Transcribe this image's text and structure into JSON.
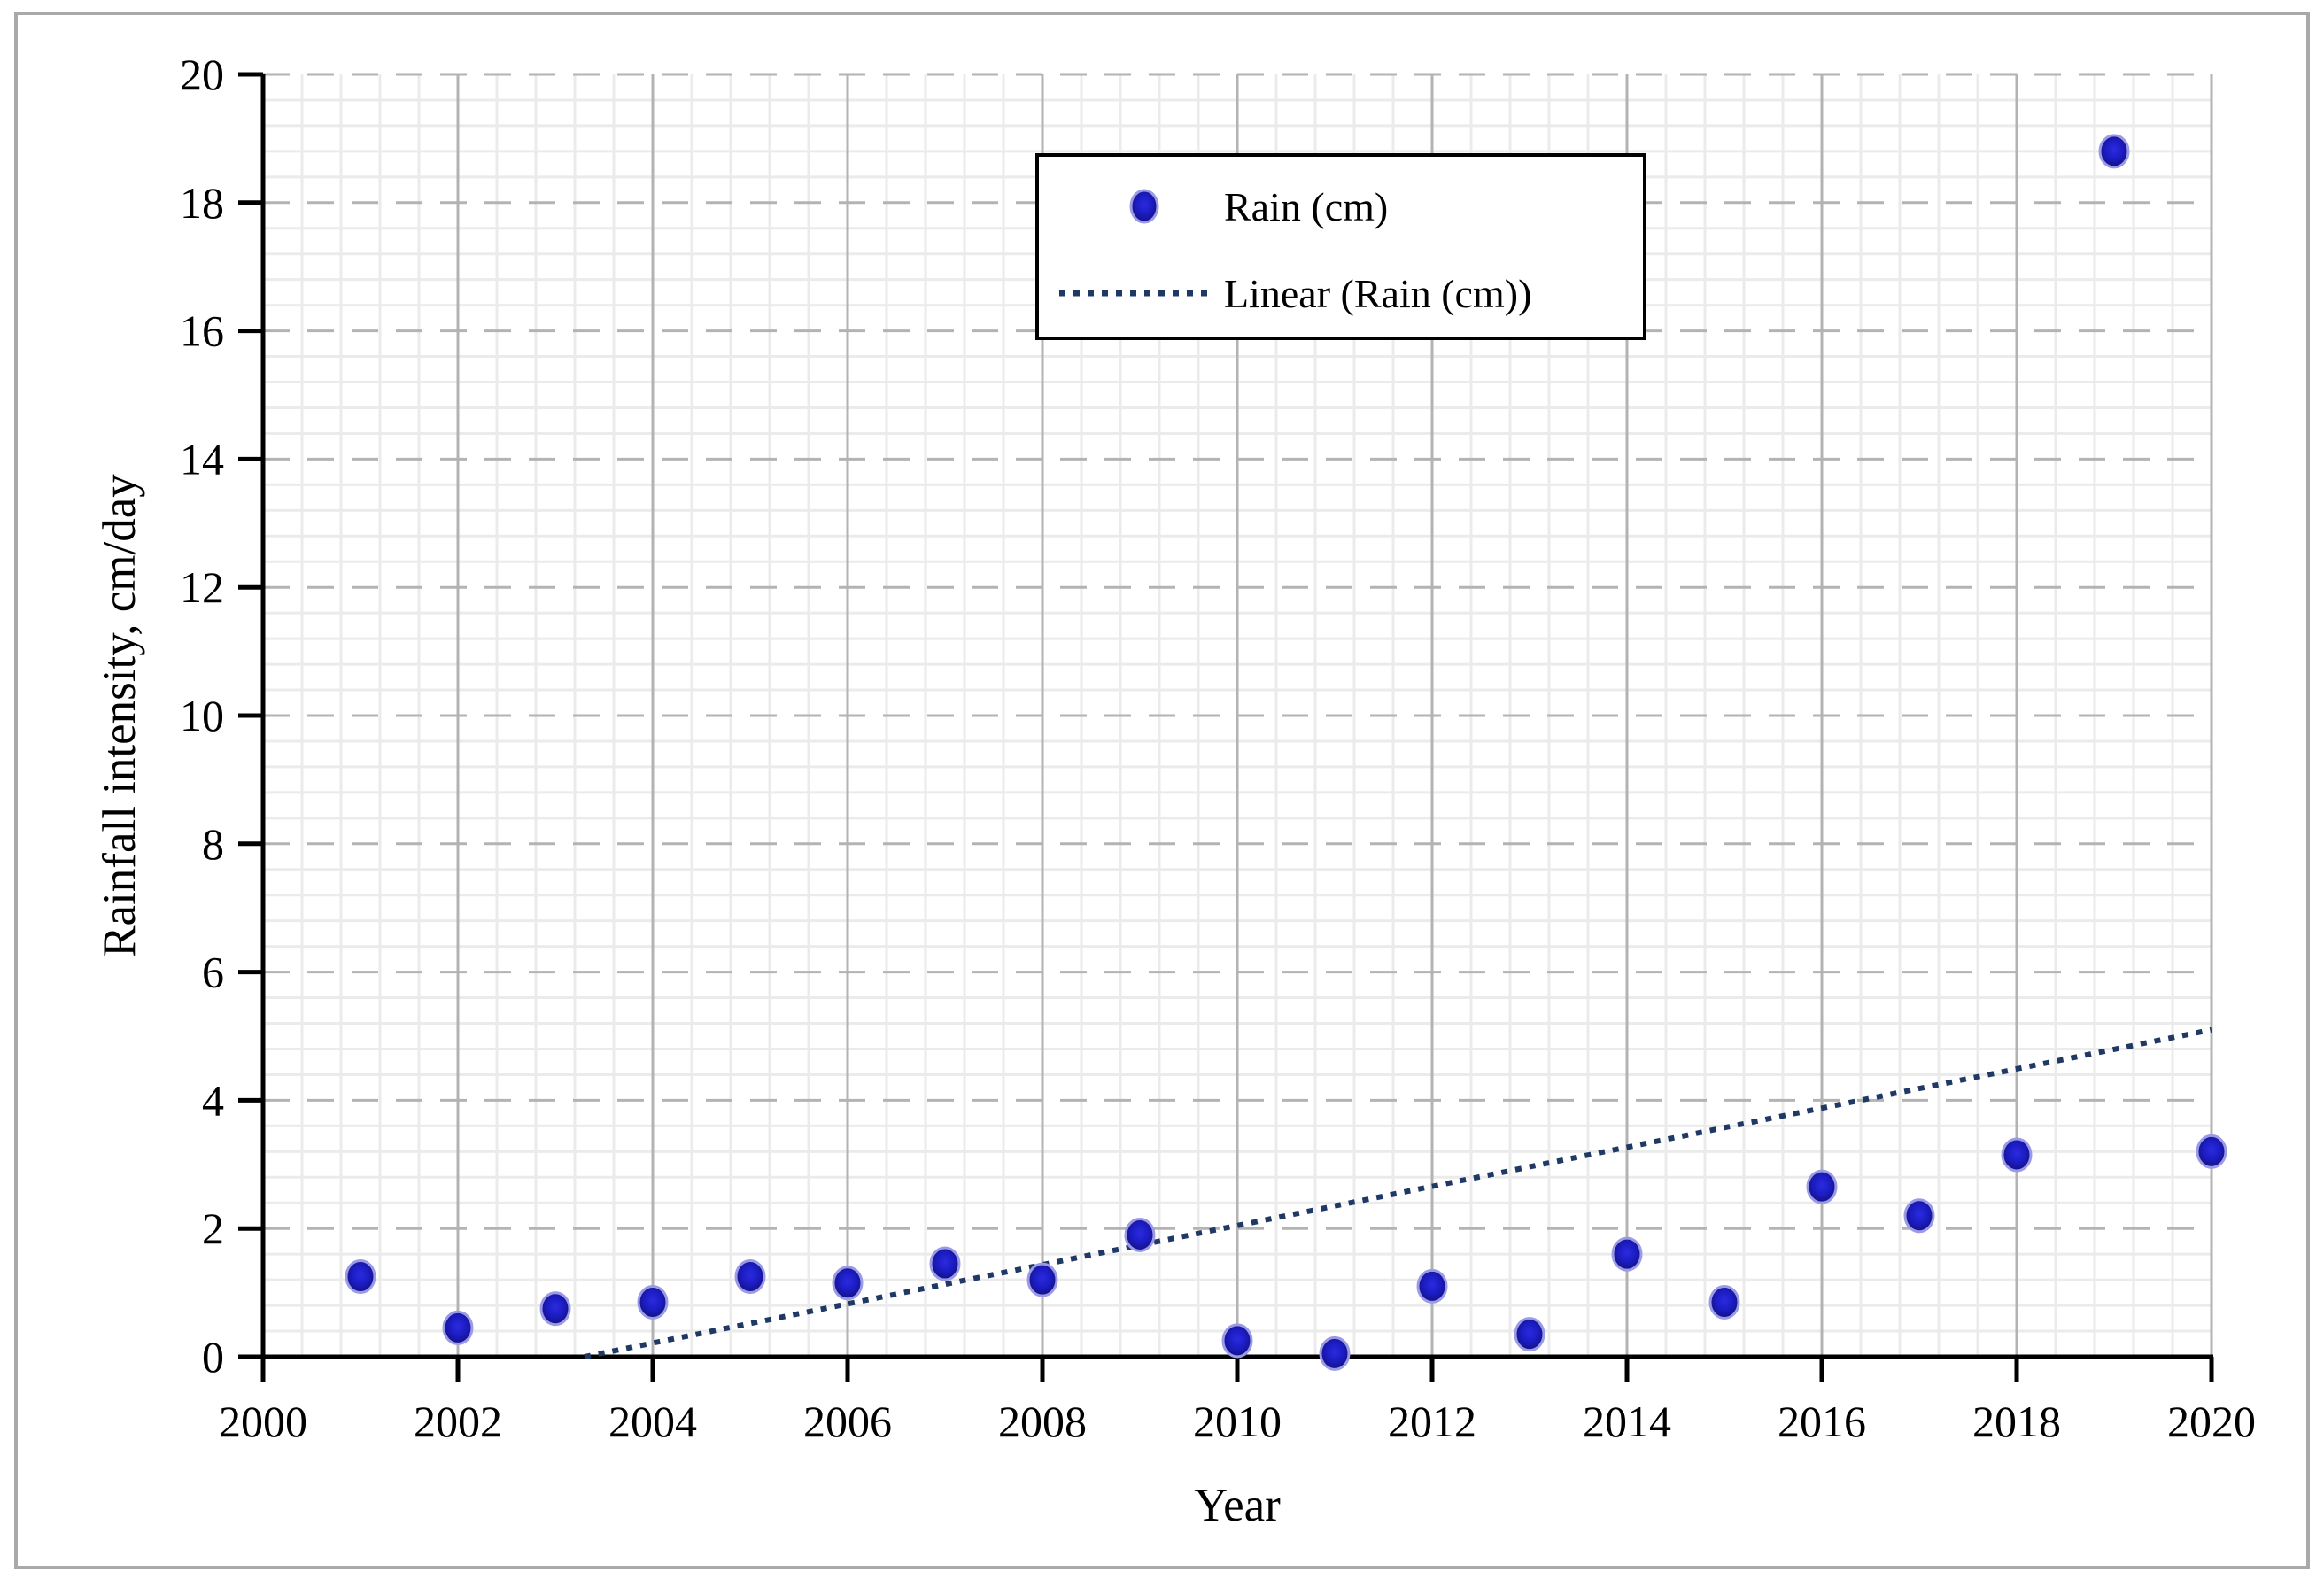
{
  "figure": {
    "background": "#ffffff",
    "border_color": "#a9a9a9"
  },
  "colors": {
    "marker_core": "#2b2be0",
    "marker_fill": "#1c1cc2",
    "marker_edge": "#12127e",
    "marker_halo": "#9a9ae6",
    "trendline": "#1f3864",
    "grid_minor": "#ebebeb",
    "grid_major": "#b3b3b3",
    "axis": "#000000",
    "legend_border": "#000000",
    "legend_fill": "#ffffff",
    "text": "#000000"
  },
  "chart_data": {
    "type": "scatter",
    "title": "",
    "xlabel": "Year",
    "ylabel": "Rainfall intensity, cm/day",
    "xlim": [
      2000,
      2020
    ],
    "ylim": [
      0,
      20
    ],
    "x_tick_step": 2,
    "y_tick_step": 2,
    "minor_grid_step": 0.4,
    "grid": "major horizontal dashed gray, major vertical solid gray, fine light-gray minor mesh",
    "legend": {
      "position": "inside top-center",
      "entries": [
        "Rain (cm)",
        "Linear (Rain (cm))"
      ]
    },
    "series": [
      {
        "name": "Rain (cm)",
        "type": "scatter",
        "marker": "filled circle",
        "x": [
          2001,
          2002,
          2003,
          2004,
          2005,
          2006,
          2007,
          2008,
          2009,
          2010,
          2011,
          2012,
          2013,
          2014,
          2015,
          2016,
          2017,
          2018,
          2019,
          2020
        ],
        "y": [
          1.25,
          0.45,
          0.75,
          0.85,
          1.25,
          1.15,
          1.45,
          1.2,
          1.9,
          0.25,
          0.05,
          1.1,
          0.35,
          1.6,
          0.85,
          2.65,
          2.2,
          3.15,
          18.8,
          3.2
        ]
      },
      {
        "name": "Linear (Rain (cm))",
        "type": "linear_trendline",
        "line_style": "dotted",
        "start": {
          "x": 2003.3,
          "y": 0
        },
        "end": {
          "x": 2020,
          "y": 5.1
        },
        "slope_per_year": 0.31
      }
    ]
  }
}
